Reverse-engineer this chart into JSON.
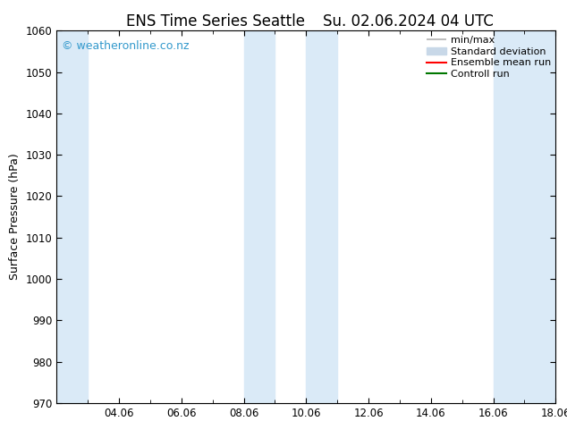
{
  "title": "ENS Time Series Seattle",
  "subtitle": "Su. 02.06.2024 04 UTC",
  "ylabel": "Surface Pressure (hPa)",
  "ylim": [
    970,
    1060
  ],
  "yticks": [
    970,
    980,
    990,
    1000,
    1010,
    1020,
    1030,
    1040,
    1050,
    1060
  ],
  "x_min": 0,
  "x_max": 16,
  "xtick_labels": [
    "04.06",
    "06.06",
    "08.06",
    "10.06",
    "12.06",
    "14.06",
    "16.06",
    "18.06"
  ],
  "xtick_positions": [
    2,
    4,
    6,
    8,
    10,
    12,
    14,
    16
  ],
  "bg_color": "#ffffff",
  "plot_bg_color": "#ffffff",
  "shaded_bands": [
    {
      "x_start": 0.0,
      "x_end": 1.0
    },
    {
      "x_start": 6.0,
      "x_end": 7.0
    },
    {
      "x_start": 8.0,
      "x_end": 9.0
    },
    {
      "x_start": 14.0,
      "x_end": 15.0
    },
    {
      "x_start": 15.0,
      "x_end": 16.0
    }
  ],
  "band_color": "#daeaf7",
  "watermark_text": "© weatheronline.co.nz",
  "watermark_color": "#3399cc",
  "watermark_fontsize": 9,
  "legend_items": [
    {
      "label": "min/max",
      "color": "#b0b0b0",
      "lw": 1.2
    },
    {
      "label": "Standard deviation",
      "color": "#c8d8e8",
      "lw": 6
    },
    {
      "label": "Ensemble mean run",
      "color": "#ff0000",
      "lw": 1.5
    },
    {
      "label": "Controll run",
      "color": "#007700",
      "lw": 1.5
    }
  ],
  "title_fontsize": 12,
  "axis_label_fontsize": 9,
  "tick_fontsize": 8.5,
  "legend_fontsize": 8,
  "minor_tick_positions": [
    1,
    3,
    5,
    7,
    9,
    11,
    13,
    15
  ]
}
